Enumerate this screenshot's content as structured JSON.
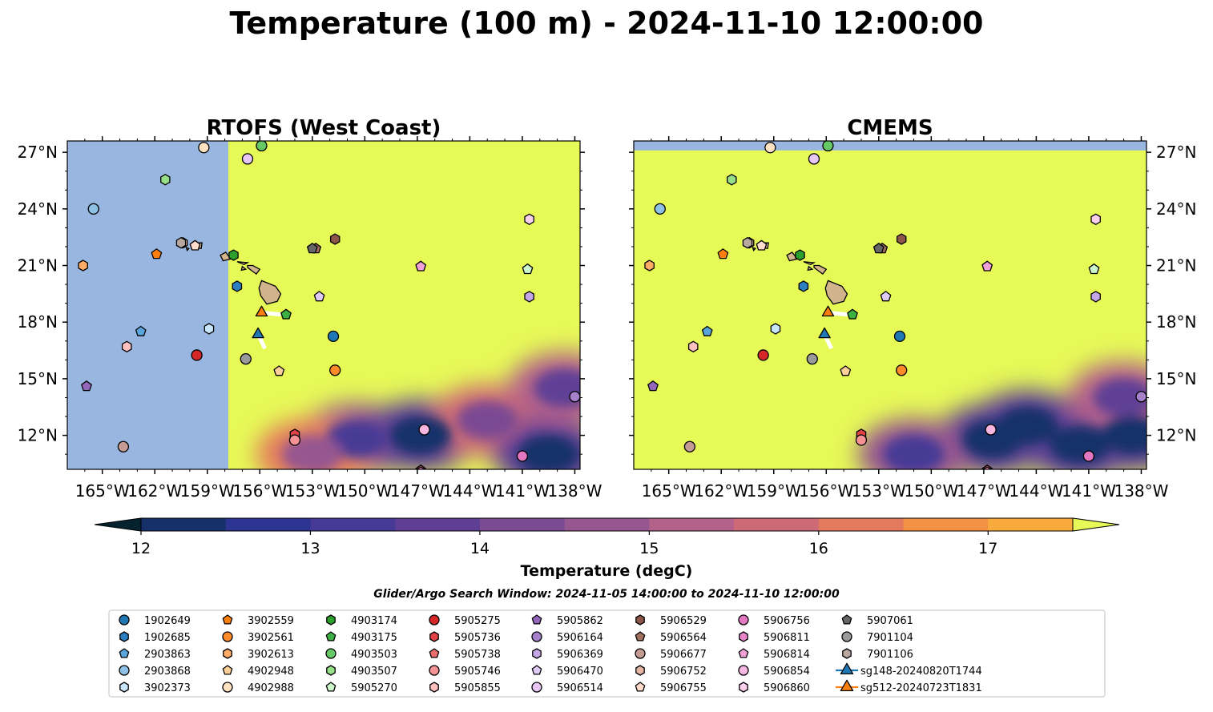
{
  "figure": {
    "title": "Temperature (100 m) - 2024-11-10 12:00:00",
    "search_window": "Glider/Argo Search Window: 2024-11-05 14:00:00 to 2024-11-10 12:00:00"
  },
  "colors": {
    "land_mask": "#98b6e0",
    "max_temp": "#e6f957",
    "island_fill": "#d2b48c"
  },
  "chart_data": [
    {
      "type": "heatmap",
      "title": "RTOFS (West Coast)",
      "xlim": [
        -167,
        -137.7
      ],
      "ylim": [
        10.2,
        27.6
      ],
      "xticks": [
        "165°W",
        "162°W",
        "159°W",
        "156°W",
        "153°W",
        "150°W",
        "147°W",
        "144°W",
        "141°W",
        "138°W"
      ],
      "yticks": [
        "27°N",
        "24°N",
        "21°N",
        "18°N",
        "15°N",
        "12°N"
      ],
      "no_data_region": {
        "lon_max": -157.8,
        "note": "masked"
      },
      "cold_features": [
        {
          "lon": -150.5,
          "lat": 11.8,
          "temp": 13.2
        },
        {
          "lon": -146.8,
          "lat": 12.0,
          "temp": 12.2
        },
        {
          "lon": -143.0,
          "lat": 12.8,
          "temp": 14.0
        },
        {
          "lon": -139.5,
          "lat": 11.0,
          "temp": 12.0
        },
        {
          "lon": -153.0,
          "lat": 11.0,
          "temp": 14.5
        },
        {
          "lon": -138.6,
          "lat": 14.5,
          "temp": 13.5
        }
      ]
    },
    {
      "type": "heatmap",
      "title": "CMEMS",
      "xlim": [
        -167,
        -137.7
      ],
      "ylim": [
        10.2,
        27.6
      ],
      "xticks": [
        "165°W",
        "162°W",
        "159°W",
        "156°W",
        "153°W",
        "150°W",
        "147°W",
        "144°W",
        "141°W",
        "138°W"
      ],
      "yticks": [
        "27°N",
        "24°N",
        "21°N",
        "18°N",
        "15°N",
        "12°N"
      ],
      "no_data_region": {
        "lat_min": 27.1,
        "note": "masked"
      },
      "cold_features": [
        {
          "lon": -146.5,
          "lat": 11.8,
          "temp": 12.0
        },
        {
          "lon": -144.5,
          "lat": 12.5,
          "temp": 12.2
        },
        {
          "lon": -141.5,
          "lat": 11.5,
          "temp": 12.3
        },
        {
          "lon": -138.5,
          "lat": 12.0,
          "temp": 12.1
        },
        {
          "lon": -151.0,
          "lat": 11.0,
          "temp": 13.0
        },
        {
          "lon": -139.0,
          "lat": 14.0,
          "temp": 13.8
        }
      ]
    }
  ],
  "colorbar": {
    "label": "Temperature (degC)",
    "ticks": [
      "12",
      "13",
      "14",
      "15",
      "16",
      "17"
    ],
    "levels": [
      11.75,
      12,
      12.5,
      13,
      13.5,
      14,
      14.5,
      15,
      15.5,
      16,
      16.5,
      17,
      17.5,
      17.75
    ],
    "colors": [
      "#04232f",
      "#16306a",
      "#2d3491",
      "#463a96",
      "#5f3f95",
      "#7a4a93",
      "#965690",
      "#b4628a",
      "#cd6a76",
      "#e37a5d",
      "#f39244",
      "#f8ab3a",
      "#f8c940",
      "#e6f957"
    ]
  },
  "floats": [
    {
      "id": "1902649",
      "lon": -151.8,
      "lat": 17.25,
      "marker": "circle",
      "color": "#1f77b4"
    },
    {
      "id": "1902685",
      "lon": -157.3,
      "lat": 19.9,
      "marker": "hexagon",
      "color": "#2c7fc0"
    },
    {
      "id": "2903863",
      "lon": -162.8,
      "lat": 17.5,
      "marker": "pentagon",
      "color": "#5aa5dc"
    },
    {
      "id": "2903868",
      "lon": -165.5,
      "lat": 24.0,
      "marker": "circle",
      "color": "#8fc1e6"
    },
    {
      "id": "3902373",
      "lon": -158.9,
      "lat": 17.65,
      "marker": "hexagon",
      "color": "#c9e6fa"
    },
    {
      "id": "3902559",
      "lon": -161.9,
      "lat": 21.6,
      "marker": "pentagon",
      "color": "#ff7f0e"
    },
    {
      "id": "3902561",
      "lon": -151.7,
      "lat": 15.45,
      "marker": "circle",
      "color": "#ff8a2a"
    },
    {
      "id": "3902613",
      "lon": -166.1,
      "lat": 21.0,
      "marker": "hexagon",
      "color": "#ffad66"
    },
    {
      "id": "4902948",
      "lon": -154.9,
      "lat": 15.4,
      "marker": "pentagon",
      "color": "#ffcf99"
    },
    {
      "id": "4902988",
      "lon": -159.2,
      "lat": 27.25,
      "marker": "circle",
      "color": "#ffe2c2"
    },
    {
      "id": "4903174",
      "lon": -157.5,
      "lat": 21.55,
      "marker": "hexagon",
      "color": "#2ca02c"
    },
    {
      "id": "4903175",
      "lon": -154.5,
      "lat": 18.4,
      "marker": "pentagon",
      "color": "#3cb043"
    },
    {
      "id": "4903503",
      "lon": -155.9,
      "lat": 27.35,
      "marker": "circle",
      "color": "#66c966"
    },
    {
      "id": "4903507",
      "lon": -161.4,
      "lat": 25.55,
      "marker": "hexagon",
      "color": "#98df8a"
    },
    {
      "id": "5905270",
      "lon": -140.7,
      "lat": 20.8,
      "marker": "pentagon",
      "color": "#ccf5cc"
    },
    {
      "id": "5905275",
      "lon": -159.6,
      "lat": 16.25,
      "marker": "circle",
      "color": "#d62728"
    },
    {
      "id": "5905736",
      "lon": -154.0,
      "lat": 12.05,
      "marker": "hexagon",
      "color": "#e04446"
    },
    {
      "id": "5905738",
      "lon": -146.8,
      "lat": 10.15,
      "marker": "pentagon",
      "color": "#ec6d6e"
    },
    {
      "id": "5905746",
      "lon": -154.0,
      "lat": 11.75,
      "marker": "circle",
      "color": "#f59293"
    },
    {
      "id": "5905855",
      "lon": -163.6,
      "lat": 16.7,
      "marker": "hexagon",
      "color": "#ffc0c0"
    },
    {
      "id": "5905862",
      "lon": -165.9,
      "lat": 14.6,
      "marker": "pentagon",
      "color": "#9467bd"
    },
    {
      "id": "5906164",
      "lon": -138.0,
      "lat": 14.05,
      "marker": "circle",
      "color": "#a580cb"
    },
    {
      "id": "5906369",
      "lon": -140.6,
      "lat": 19.35,
      "marker": "hexagon",
      "color": "#c5a6e6"
    },
    {
      "id": "5906470",
      "lon": -152.6,
      "lat": 19.35,
      "marker": "pentagon",
      "color": "#e0cbf7"
    },
    {
      "id": "5906514",
      "lon": -156.7,
      "lat": 26.65,
      "marker": "circle",
      "color": "#e8c6f5"
    },
    {
      "id": "5906529",
      "lon": -151.7,
      "lat": 22.4,
      "marker": "hexagon",
      "color": "#8c564b"
    },
    {
      "id": "5906564",
      "lon": -152.8,
      "lat": 21.9,
      "marker": "pentagon",
      "color": "#a2705f"
    },
    {
      "id": "5906677",
      "lon": -163.8,
      "lat": 11.4,
      "marker": "circle",
      "color": "#c49c94"
    },
    {
      "id": "5906752",
      "lon": -160.4,
      "lat": 22.2,
      "marker": "hexagon",
      "color": "#e5b5a5"
    },
    {
      "id": "5906755",
      "lon": -159.7,
      "lat": 22.05,
      "marker": "pentagon",
      "color": "#ffdccc"
    },
    {
      "id": "5906756",
      "lon": -141.0,
      "lat": 10.9,
      "marker": "circle",
      "color": "#e377c2"
    },
    {
      "id": "5906811",
      "lon": -146.8,
      "lat": 10.05,
      "marker": "hexagon",
      "color": "#ea86cc"
    },
    {
      "id": "5906814",
      "lon": -146.8,
      "lat": 20.95,
      "marker": "pentagon",
      "color": "#f2a0d8"
    },
    {
      "id": "5906854",
      "lon": -146.6,
      "lat": 12.3,
      "marker": "circle",
      "color": "#f7b6e0"
    },
    {
      "id": "5906860",
      "lon": -140.6,
      "lat": 23.45,
      "marker": "hexagon",
      "color": "#fad0ec"
    },
    {
      "id": "5907061",
      "lon": -153.0,
      "lat": 21.9,
      "marker": "pentagon",
      "color": "#666666"
    },
    {
      "id": "7901104",
      "lon": -156.8,
      "lat": 16.05,
      "marker": "circle",
      "color": "#9a9a9a"
    },
    {
      "id": "7901106",
      "lon": -160.5,
      "lat": 22.2,
      "marker": "hexagon",
      "color": "#b8a8a0"
    },
    {
      "id": "sg148-20240820T1744",
      "lon": -156.1,
      "lat": 17.35,
      "marker": "triangle",
      "color": "#1f77b4",
      "track": [
        [
          -156.1,
          17.35
        ],
        [
          -155.7,
          16.6
        ]
      ]
    },
    {
      "id": "sg512-20240723T1831",
      "lon": -155.9,
      "lat": 18.5,
      "marker": "triangle",
      "color": "#ff7f0e",
      "track": [
        [
          -155.9,
          18.5
        ],
        [
          -154.8,
          18.4
        ]
      ]
    }
  ]
}
